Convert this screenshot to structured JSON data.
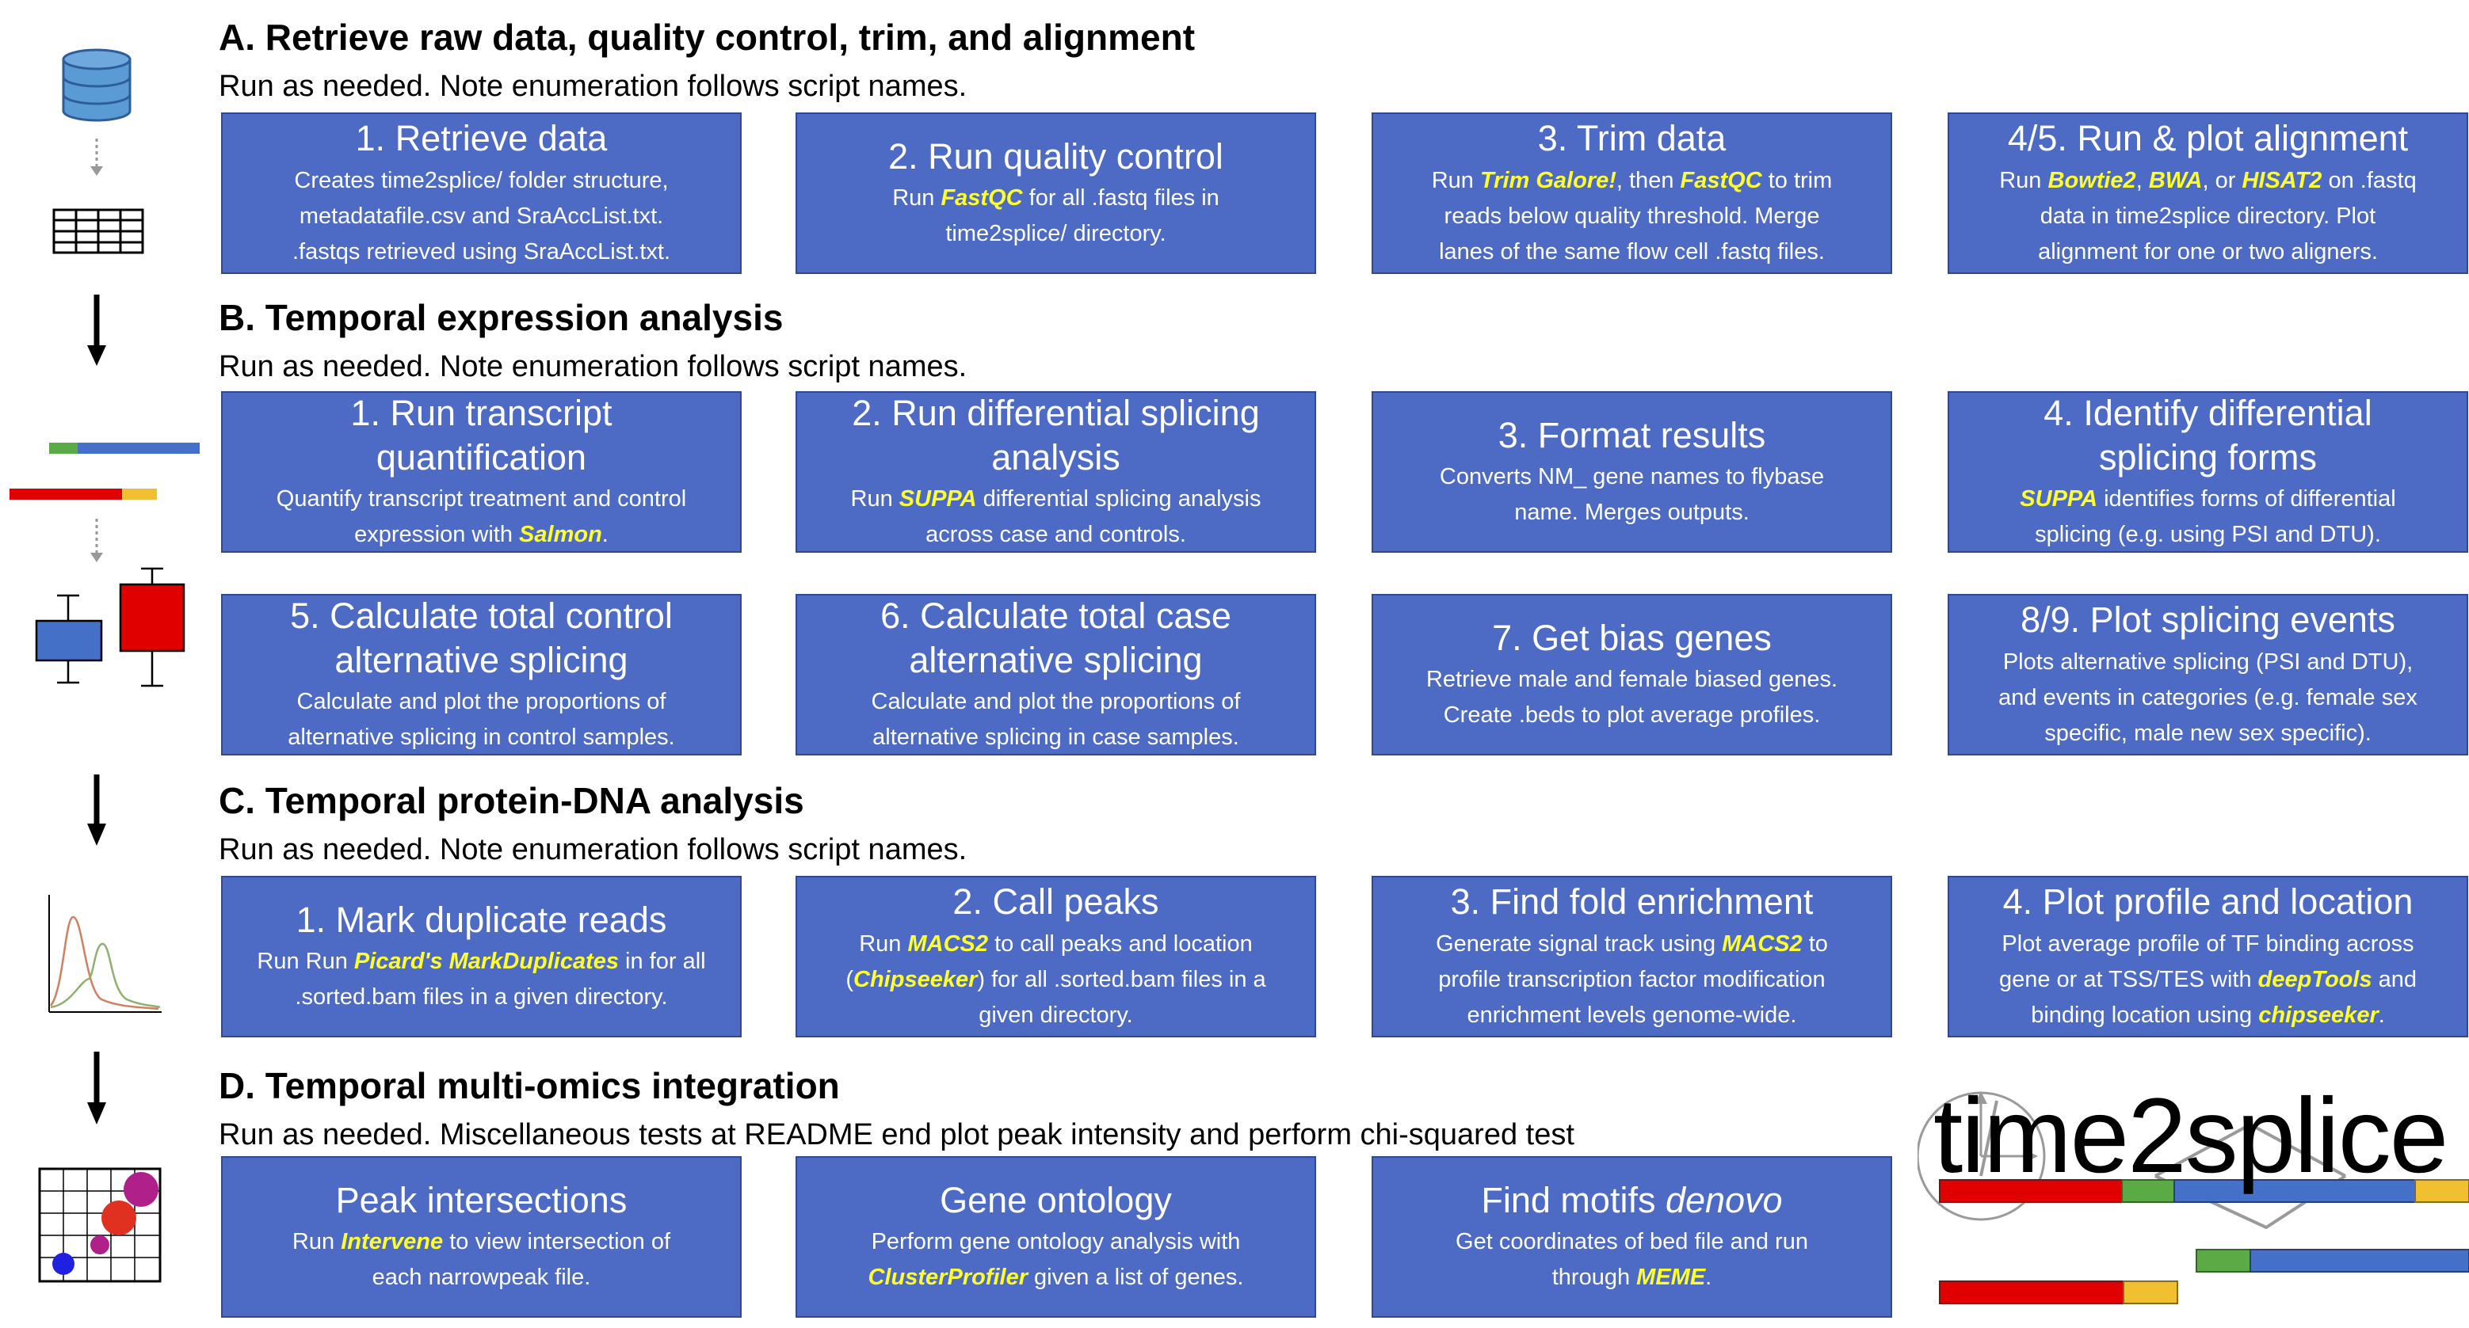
{
  "sections": {
    "a": {
      "title": "A. Retrieve raw data, quality control, trim, and alignment",
      "subtitle": "Run as needed. Note enumeration follows script names.",
      "boxes": [
        {
          "title": "1. Retrieve data",
          "desc": [
            "Creates time2splice/ folder structure,",
            "metadatafile.csv and SraAccList.txt.",
            ".fastqs retrieved using SraAccList.txt."
          ]
        },
        {
          "title": "2. Run quality control",
          "d1": "Run ",
          "tool": "FastQC",
          "d2": " for all .fastq files in",
          "d3": "time2splice/ directory."
        },
        {
          "title": "3. Trim data",
          "d1": "Run ",
          "tool1": "Trim Galore!",
          "d2": ", then ",
          "tool2": "FastQC",
          "d3": " to trim",
          "d4": "reads below quality threshold. Merge",
          "d5": "lanes of the same flow cell .fastq files."
        },
        {
          "title": "4/5. Run & plot alignment",
          "d1": "Run ",
          "tool1": "Bowtie2",
          "d2": ", ",
          "tool2": "BWA",
          "d3": ", or ",
          "tool3": "HISAT2",
          "d4": " on .fastq",
          "d5": "data in time2splice directory. Plot",
          "d6": "alignment for one or two aligners."
        }
      ]
    },
    "b": {
      "title": "B. Temporal expression analysis",
      "subtitle": "Run as needed. Note enumeration follows script names.",
      "boxes": [
        {
          "title1": "1. Run transcript",
          "title2": "quantification",
          "d1": "Quantify transcript treatment and control",
          "d2": "expression with ",
          "tool": "Salmon",
          "d3": "."
        },
        {
          "title1": "2. Run differential splicing",
          "title2": "analysis",
          "d1": "Run ",
          "tool": "SUPPA",
          "d2": " differential splicing analysis",
          "d3": "across case and controls."
        },
        {
          "title": "3. Format results",
          "d1": "Converts NM_ gene names to flybase",
          "d2": "name. Merges outputs."
        },
        {
          "title1": "4. Identify differential",
          "title2": "splicing forms",
          "tool": "SUPPA",
          "d1": " identifies forms of differential",
          "d2": "splicing (e.g. using PSI and DTU)."
        },
        {
          "title1": "5. Calculate total control",
          "title2": "alternative splicing",
          "d1": "Calculate and plot the proportions of",
          "d2": "alternative splicing in control samples."
        },
        {
          "title1": "6. Calculate total case",
          "title2": "alternative splicing",
          "d1": "Calculate and plot the proportions of",
          "d2": "alternative splicing in case samples."
        },
        {
          "title": "7. Get bias genes",
          "d1": "Retrieve male and female biased genes.",
          "d2": "Create .beds to plot average profiles."
        },
        {
          "title": "8/9. Plot splicing events",
          "d1": "Plots alternative splicing (PSI and DTU),",
          "d2": "and events in categories (e.g. female sex",
          "d3": "specific, male new sex specific)."
        }
      ]
    },
    "c": {
      "title": "C. Temporal protein-DNA analysis",
      "subtitle": "Run as needed. Note enumeration follows script names.",
      "boxes": [
        {
          "title": "1. Mark duplicate reads",
          "d1": "Run Run ",
          "tool": "Picard's MarkDuplicates",
          "d2": " in for all",
          "d3": ".sorted.bam files in a given directory."
        },
        {
          "title": "2. Call peaks",
          "d1": "Run ",
          "tool1": "MACS2",
          "d2": " to call peaks and location",
          "d3": "(",
          "tool2": "Chipseeker",
          "d4": ") for all .sorted.bam files in a",
          "d5": "given directory."
        },
        {
          "title": "3. Find fold enrichment",
          "d1": "Generate signal track using ",
          "tool": "MACS2",
          "d2": " to",
          "d3": "profile transcription factor modification",
          "d4": "enrichment levels genome-wide."
        },
        {
          "title": "4. Plot profile and location",
          "d1": "Plot average profile of TF binding across",
          "d2": "gene or at TSS/TES with ",
          "tool1": "deepTools",
          "d3": " and",
          "d4": "binding location using ",
          "tool2": "chipseeker",
          "d5": "."
        }
      ]
    },
    "d": {
      "title": "D. Temporal multi-omics integration",
      "subtitle": "Run as needed. Miscellaneous tests at README end plot peak intensity and perform chi-squared test",
      "boxes": [
        {
          "title": "Peak intersections",
          "d1": "Run ",
          "tool": "Intervene",
          "d2": " to view intersection of",
          "d3": "each narrowpeak file."
        },
        {
          "title": "Gene ontology",
          "d1": "Perform gene ontology analysis with",
          "tool": "ClusterProfiler",
          "d2": " given a list of genes."
        },
        {
          "title1": "Find motifs ",
          "title2": "denovo",
          "d1": "Get coordinates of bed file and run",
          "d2": "through ",
          "tool": "MEME",
          "d3": "."
        }
      ]
    }
  },
  "logo": {
    "text": "time2splice"
  },
  "colors": {
    "box_fill": "#4d6ac4",
    "box_border": "#2f4a93",
    "tool_highlight": "#ffff2e",
    "red": "#e00000",
    "green": "#5aaa46",
    "yellow": "#f0c030",
    "blue": "#4470c8"
  },
  "icons": [
    "database-icon",
    "table-icon",
    "gene-bars-icon",
    "boxplot-icon",
    "peak-curves-icon",
    "dot-plot-icon",
    "down-arrow-icon"
  ]
}
